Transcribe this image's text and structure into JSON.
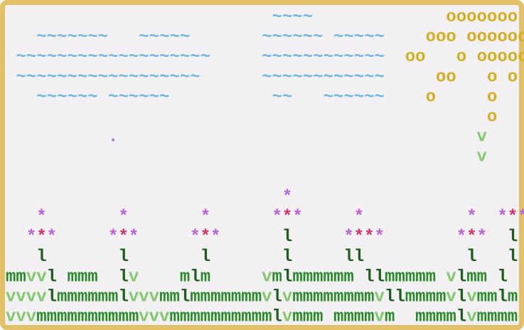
{
  "lines": [
    "                          ~~~~             ooooooo",
    "   ~~~~~~~   ~~~~~       ~~~~~~ ~~~~~    ooo oooooo",
    " ~~~~~~~~~~~~~~~~~~~     ~~~~~~~~~~~~  oo   o ooooo",
    " ~~~~~~~~~~~~~~~~~~      ~~~~~~~~~~~~     oo   o o",
    "   ~~~~~~ ~~~~~~          ~~   ~~~~~~    o     o",
    "                                               o",
    "          .                                   v",
    "                                              v",
    "",
    "                           *",
    "   *       *       *      ***     *          *  ***",
    "  ***     ***     ***      l     ****       ***  l",
    "   l       l       l       l     ll          l   l",
    "mmvvl mmm  lv    mlm     vmlmmmmmm llmmmmm vlmm l",
    "vvvvlmmmmmmlvvvmmlmmmmmmmvlvmmmmmmmmvllmmmmvlvmmlm",
    "vvvmmmmmmmmmmvvvmmmmmmmmmmlvmmm mmmmvm  mmmmlvmmmm"
  ]
}
